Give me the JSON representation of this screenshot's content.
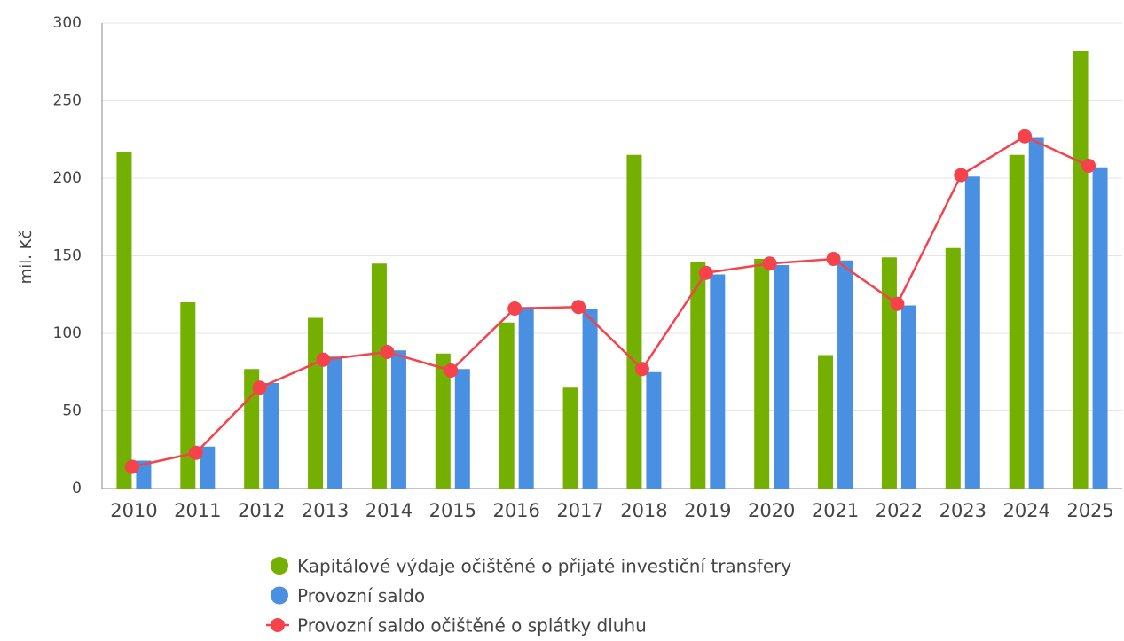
{
  "chart_data": {
    "type": "bar",
    "y_label": "mil. Kč",
    "categories": [
      "2010",
      "2011",
      "2012",
      "2013",
      "2014",
      "2015",
      "2016",
      "2017",
      "2018",
      "2019",
      "2020",
      "2021",
      "2022",
      "2023",
      "2024",
      "2025"
    ],
    "series": [
      {
        "name": "Kapitálové výdaje očištěné o přijaté investiční transfery",
        "type": "bar",
        "color": "#73b000",
        "values": [
          217,
          120,
          77,
          110,
          145,
          87,
          107,
          65,
          215,
          146,
          148,
          86,
          149,
          155,
          215,
          282
        ]
      },
      {
        "name": "Provozní saldo",
        "type": "bar",
        "color": "#4a90e2",
        "values": [
          18,
          27,
          68,
          85,
          89,
          77,
          117,
          116,
          75,
          138,
          144,
          147,
          118,
          201,
          226,
          207
        ]
      },
      {
        "name": "Provozní saldo očištěné o splátky dluhu",
        "type": "line",
        "color": "#f5424b",
        "values": [
          14,
          23,
          65,
          83,
          88,
          76,
          116,
          117,
          77,
          139,
          145,
          148,
          119,
          202,
          227,
          208
        ]
      }
    ],
    "ylim": [
      0,
      300
    ],
    "yticks": [
      0,
      50,
      100,
      150,
      200,
      250,
      300
    ],
    "grid": true
  }
}
